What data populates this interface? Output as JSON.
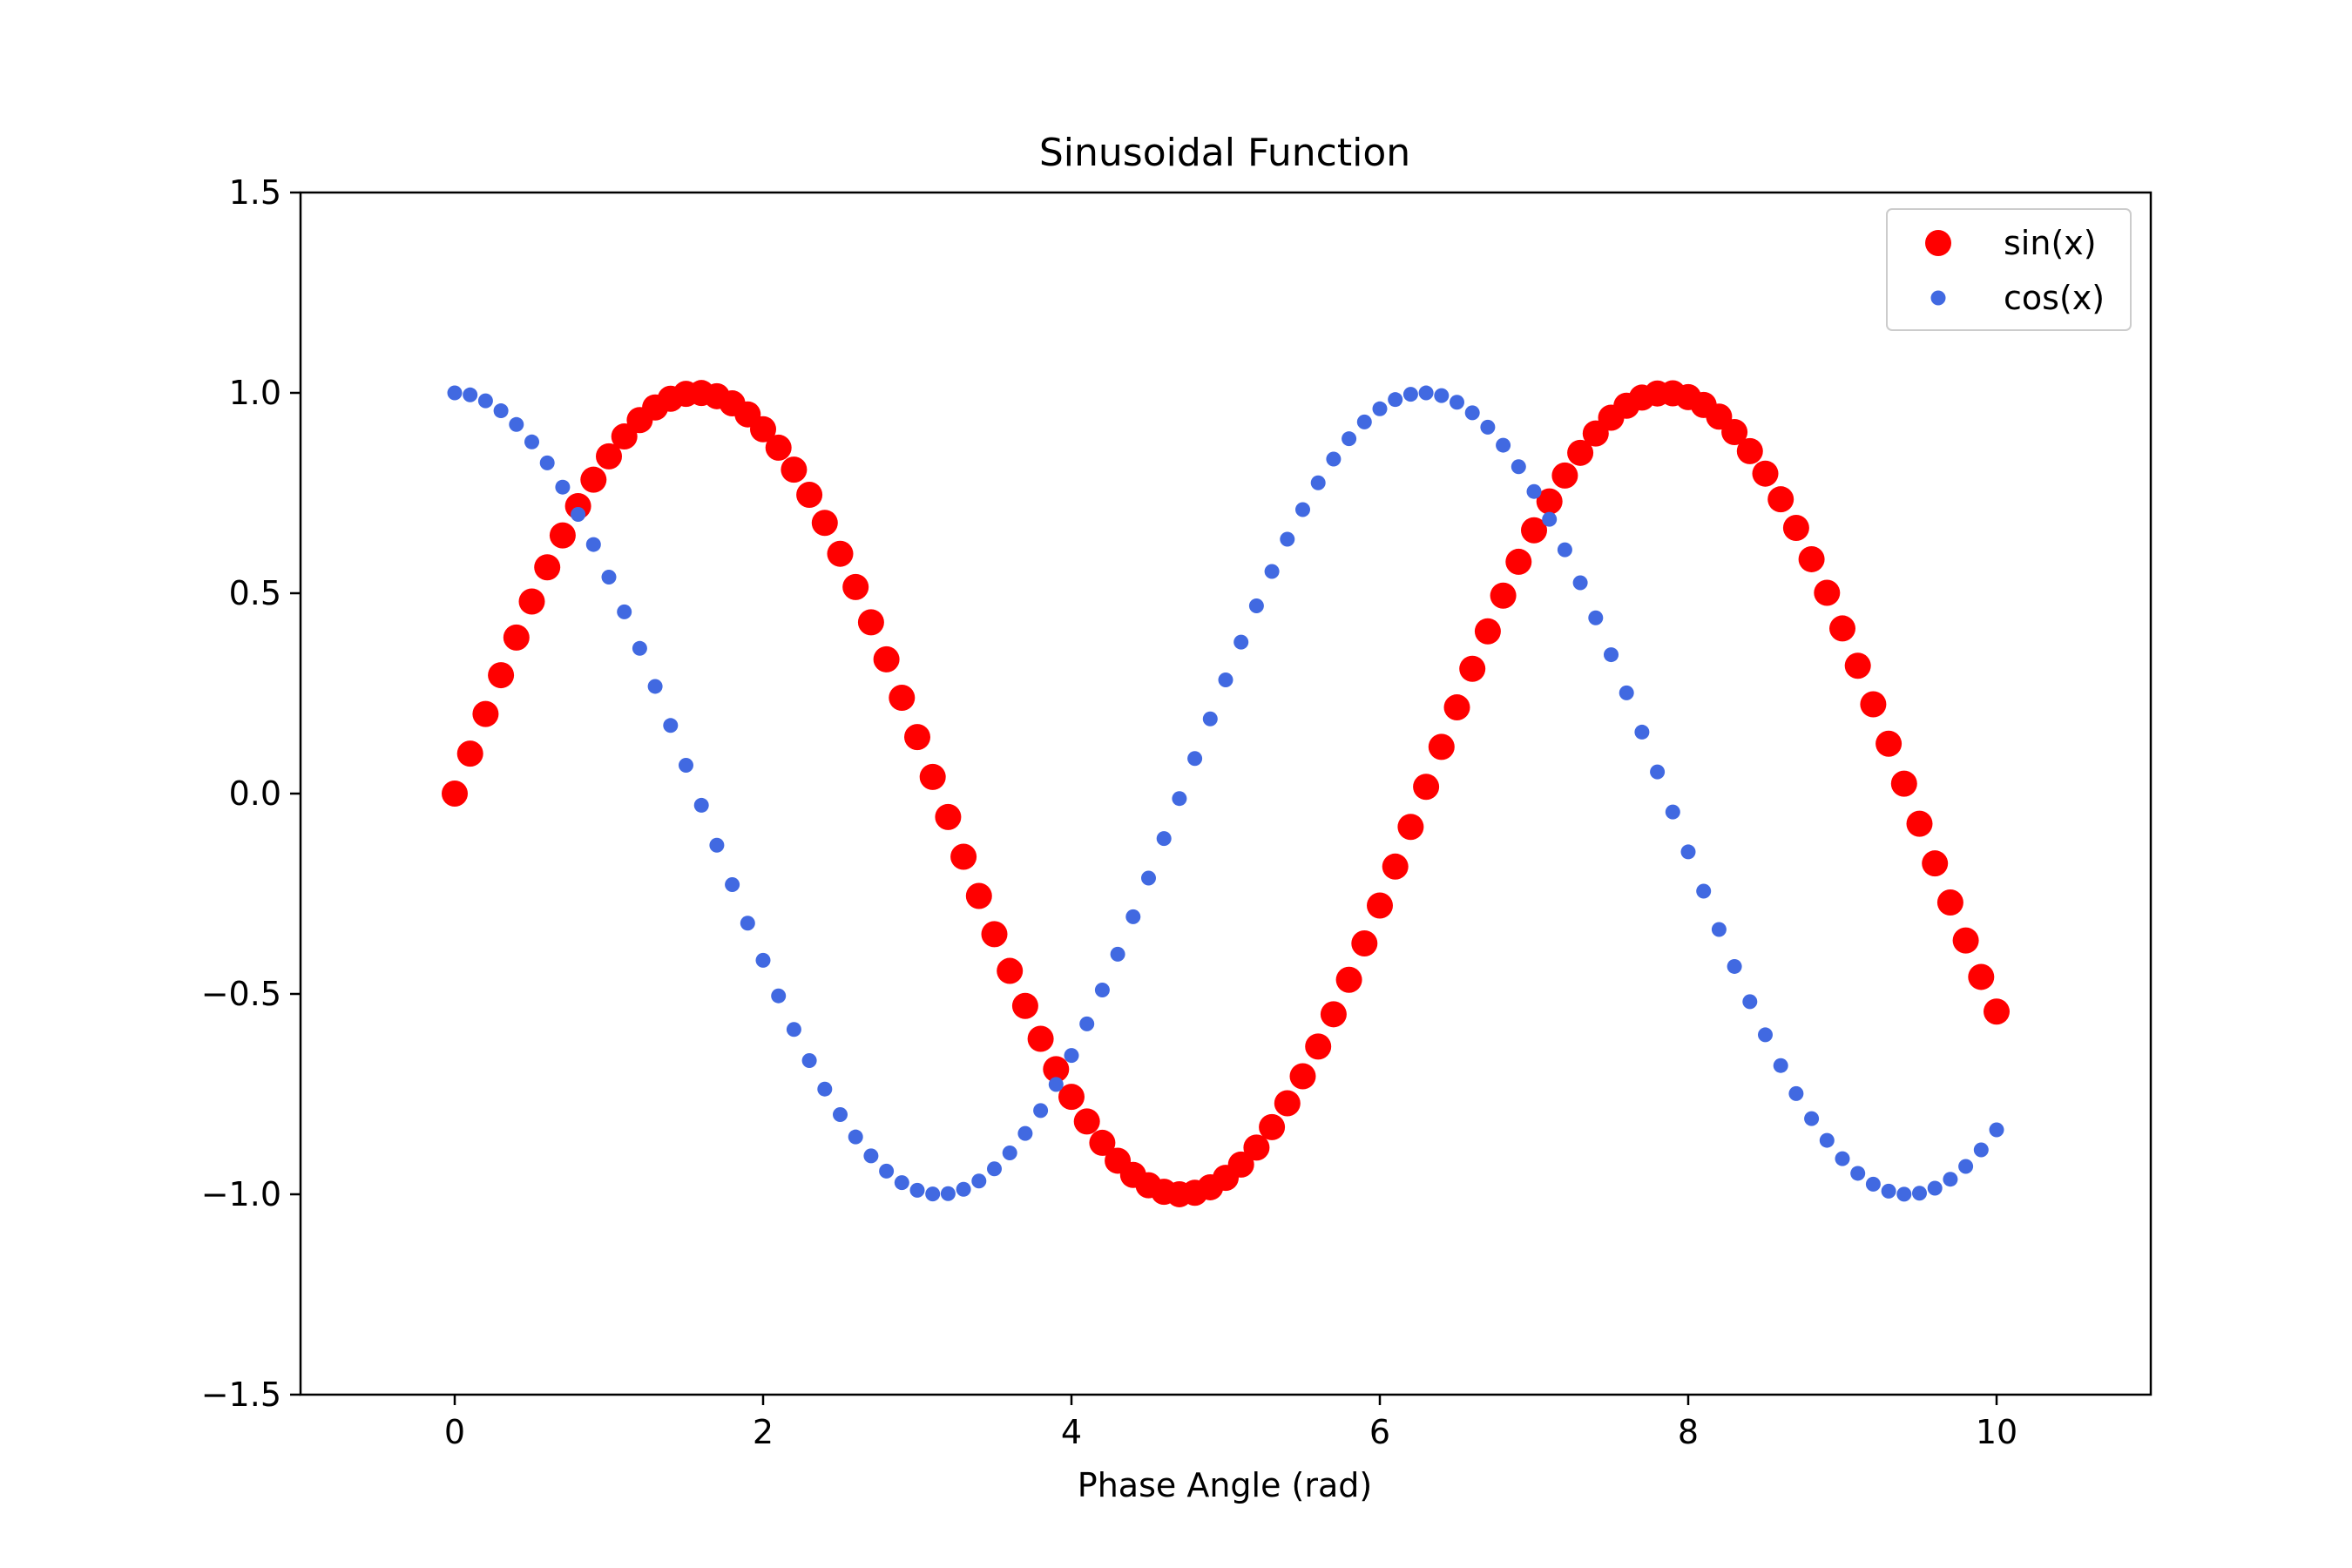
{
  "chart_data": {
    "type": "scatter",
    "title": "Sinusoidal Function",
    "xlabel": "Phase Angle (rad)",
    "ylabel": "",
    "xlim": [
      -1,
      11
    ],
    "ylim": [
      -1.5,
      1.5
    ],
    "xticks": [
      0,
      2,
      4,
      6,
      8,
      10
    ],
    "xtick_labels": [
      "0",
      "2",
      "4",
      "6",
      "8",
      "10"
    ],
    "yticks": [
      -1.5,
      -1.0,
      -0.5,
      0.0,
      0.5,
      1.0,
      1.5
    ],
    "ytick_labels": [
      "−1.5",
      "−1.0",
      "−0.5",
      "0.0",
      "0.5",
      "1.0",
      "1.5"
    ],
    "grid": false,
    "legend_position": "top-right",
    "x": [
      0.0,
      0.1,
      0.2,
      0.3,
      0.4,
      0.5,
      0.6,
      0.7,
      0.8,
      0.9,
      1.0,
      1.1,
      1.2,
      1.3,
      1.4,
      1.5,
      1.6,
      1.7,
      1.8,
      1.9,
      2.0,
      2.1,
      2.2,
      2.3,
      2.4,
      2.5,
      2.6,
      2.7,
      2.8,
      2.9,
      3.0,
      3.1,
      3.2,
      3.3,
      3.4,
      3.5,
      3.6,
      3.7,
      3.8,
      3.9,
      4.0,
      4.1,
      4.2,
      4.3,
      4.4,
      4.5,
      4.6,
      4.7,
      4.8,
      4.9,
      5.0,
      5.1,
      5.2,
      5.3,
      5.4,
      5.5,
      5.6,
      5.7,
      5.8,
      5.9,
      6.0,
      6.1,
      6.2,
      6.3,
      6.4,
      6.5,
      6.6,
      6.7,
      6.8,
      6.9,
      7.0,
      7.1,
      7.2,
      7.3,
      7.4,
      7.5,
      7.6,
      7.7,
      7.8,
      7.9,
      8.0,
      8.1,
      8.2,
      8.3,
      8.4,
      8.5,
      8.6,
      8.7,
      8.8,
      8.9,
      9.0,
      9.1,
      9.2,
      9.3,
      9.4,
      9.5,
      9.6,
      9.7,
      9.8,
      9.9,
      10.0
    ],
    "series": [
      {
        "name": "sin(x)",
        "color": "#ff0000",
        "marker_size": "large",
        "values": [
          0.0,
          0.0998,
          0.1987,
          0.2955,
          0.3894,
          0.4794,
          0.5646,
          0.6442,
          0.7174,
          0.7833,
          0.8415,
          0.8912,
          0.932,
          0.9636,
          0.9854,
          0.9975,
          0.9996,
          0.9917,
          0.9738,
          0.9463,
          0.9093,
          0.8632,
          0.8085,
          0.7457,
          0.6755,
          0.5985,
          0.5155,
          0.4274,
          0.335,
          0.2392,
          0.1411,
          0.0416,
          -0.0584,
          -0.1577,
          -0.2555,
          -0.3508,
          -0.4425,
          -0.5298,
          -0.6119,
          -0.6878,
          -0.7568,
          -0.8183,
          -0.8716,
          -0.9162,
          -0.9516,
          -0.9775,
          -0.9937,
          -0.9999,
          -0.9962,
          -0.9825,
          -0.9589,
          -0.9258,
          -0.8835,
          -0.8323,
          -0.7728,
          -0.7055,
          -0.6313,
          -0.5507,
          -0.4646,
          -0.3739,
          -0.2794,
          -0.1822,
          -0.0831,
          0.0168,
          0.1165,
          0.2151,
          0.3115,
          0.4048,
          0.4941,
          0.5784,
          0.657,
          0.729,
          0.7937,
          0.8504,
          0.8987,
          0.938,
          0.9679,
          0.9882,
          0.9985,
          0.9989,
          0.9894,
          0.9699,
          0.9407,
          0.9022,
          0.8546,
          0.7985,
          0.7344,
          0.663,
          0.5849,
          0.501,
          0.4121,
          0.319,
          0.2229,
          0.1245,
          0.0248,
          -0.0752,
          -0.1743,
          -0.2718,
          -0.3665,
          -0.4575,
          -0.544
        ]
      },
      {
        "name": "cos(x)",
        "color": "#4169e1",
        "marker_size": "small",
        "values": [
          1.0,
          0.995,
          0.9801,
          0.9553,
          0.9211,
          0.8776,
          0.8253,
          0.7648,
          0.6967,
          0.6216,
          0.5403,
          0.4536,
          0.3624,
          0.2675,
          0.17,
          0.0707,
          -0.0292,
          -0.1288,
          -0.2272,
          -0.3233,
          -0.4161,
          -0.5048,
          -0.5885,
          -0.6663,
          -0.7374,
          -0.8011,
          -0.8569,
          -0.9041,
          -0.9422,
          -0.971,
          -0.99,
          -0.9991,
          -0.9983,
          -0.9875,
          -0.9668,
          -0.9365,
          -0.8968,
          -0.8481,
          -0.791,
          -0.7259,
          -0.6536,
          -0.5748,
          -0.4903,
          -0.4008,
          -0.3073,
          -0.2108,
          -0.1122,
          -0.0124,
          0.0875,
          0.1865,
          0.2837,
          0.378,
          0.4685,
          0.5544,
          0.6347,
          0.7087,
          0.7756,
          0.8347,
          0.8855,
          0.9275,
          0.9602,
          0.9833,
          0.9965,
          0.9999,
          0.9932,
          0.9766,
          0.9502,
          0.9144,
          0.8694,
          0.8157,
          0.7539,
          0.6845,
          0.6084,
          0.5261,
          0.4385,
          0.3466,
          0.2513,
          0.1534,
          0.054,
          -0.046,
          -0.1455,
          -0.2435,
          -0.3392,
          -0.4314,
          -0.5193,
          -0.602,
          -0.6787,
          -0.7486,
          -0.8111,
          -0.8654,
          -0.9111,
          -0.9477,
          -0.9748,
          -0.9922,
          -0.9997,
          -0.9972,
          -0.9847,
          -0.9624,
          -0.9304,
          -0.8892,
          -0.8391
        ]
      }
    ]
  }
}
